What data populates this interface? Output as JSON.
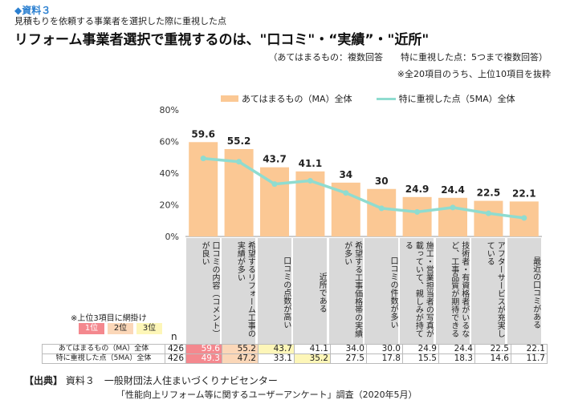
{
  "header": {
    "tag": "◆資料３",
    "subtitle": "見積もりを依頼する事業者を選択した際に重視した点",
    "title": "リフォーム事業者選択で重視するのは、\"口コミ\"・“実績”・\"近所\"",
    "note1": "（あてはまるもの：複数回答　　特に重視した点：5つまで複数回答）",
    "note2": "※全20項目のうち、上位10項目を抜粋"
  },
  "chart_data": {
    "type": "bar+line",
    "categories": [
      "口コミの内容（コメント）が良い",
      "希望するリフォーム工事の実績が多い",
      "口コミの点数が高い",
      "近所である",
      "希望する工事価格帯の実績が多い",
      "口コミの件数が多い",
      "施工・営業担当者の写真が載っていて、親しみが持てる",
      "技術者・有資格者がいるなど、工事品質が期待できる",
      "アフターサービスが充実している",
      "最近の口コミがある"
    ],
    "series": [
      {
        "name": "あてはまるもの（MA）全体",
        "type": "bar",
        "color": "#fbc894",
        "values": [
          59.6,
          55.2,
          43.7,
          41.1,
          34.0,
          30.0,
          24.9,
          24.4,
          22.5,
          22.1
        ]
      },
      {
        "name": "特に重視した点（5MA）全体",
        "type": "line",
        "color": "#8fdcd0",
        "values": [
          49.3,
          47.2,
          33.1,
          35.2,
          27.5,
          17.8,
          15.5,
          18.3,
          14.6,
          11.7
        ]
      }
    ],
    "yticks": [
      "0%",
      "20%",
      "40%",
      "60%",
      "80%"
    ],
    "ylim": [
      0,
      80
    ],
    "grid": false,
    "legend": "top"
  },
  "table": {
    "highlight_note": "※上位3項目に網掛け",
    "ranks": [
      {
        "label": "1位",
        "color": "#f4888e"
      },
      {
        "label": "2位",
        "color": "#fbd7b8"
      },
      {
        "label": "3位",
        "color": "#fdf6b8"
      }
    ],
    "n_label": "n",
    "rows": [
      {
        "label": "あてはまるもの（MA）全体",
        "n": "426",
        "values": [
          "59.6",
          "55.2",
          "43.7",
          "41.1",
          "34.0",
          "30.0",
          "24.9",
          "24.4",
          "22.5",
          "22.1"
        ],
        "ranks": [
          1,
          2,
          3,
          0,
          0,
          0,
          0,
          0,
          0,
          0
        ]
      },
      {
        "label": "特に重視した点（5MA）全体",
        "n": "426",
        "values": [
          "49.3",
          "47.2",
          "33.1",
          "35.2",
          "27.5",
          "17.8",
          "15.5",
          "18.3",
          "14.6",
          "11.7"
        ],
        "ranks": [
          1,
          2,
          0,
          3,
          0,
          0,
          0,
          0,
          0,
          0
        ]
      }
    ]
  },
  "source": {
    "label": "【出典】",
    "line1": "資料３　一般財団法人住まいづくりナビセンター",
    "line2": "「性能向上リフォーム等に関するユーザーアンケート」調査（2020年5月）"
  }
}
